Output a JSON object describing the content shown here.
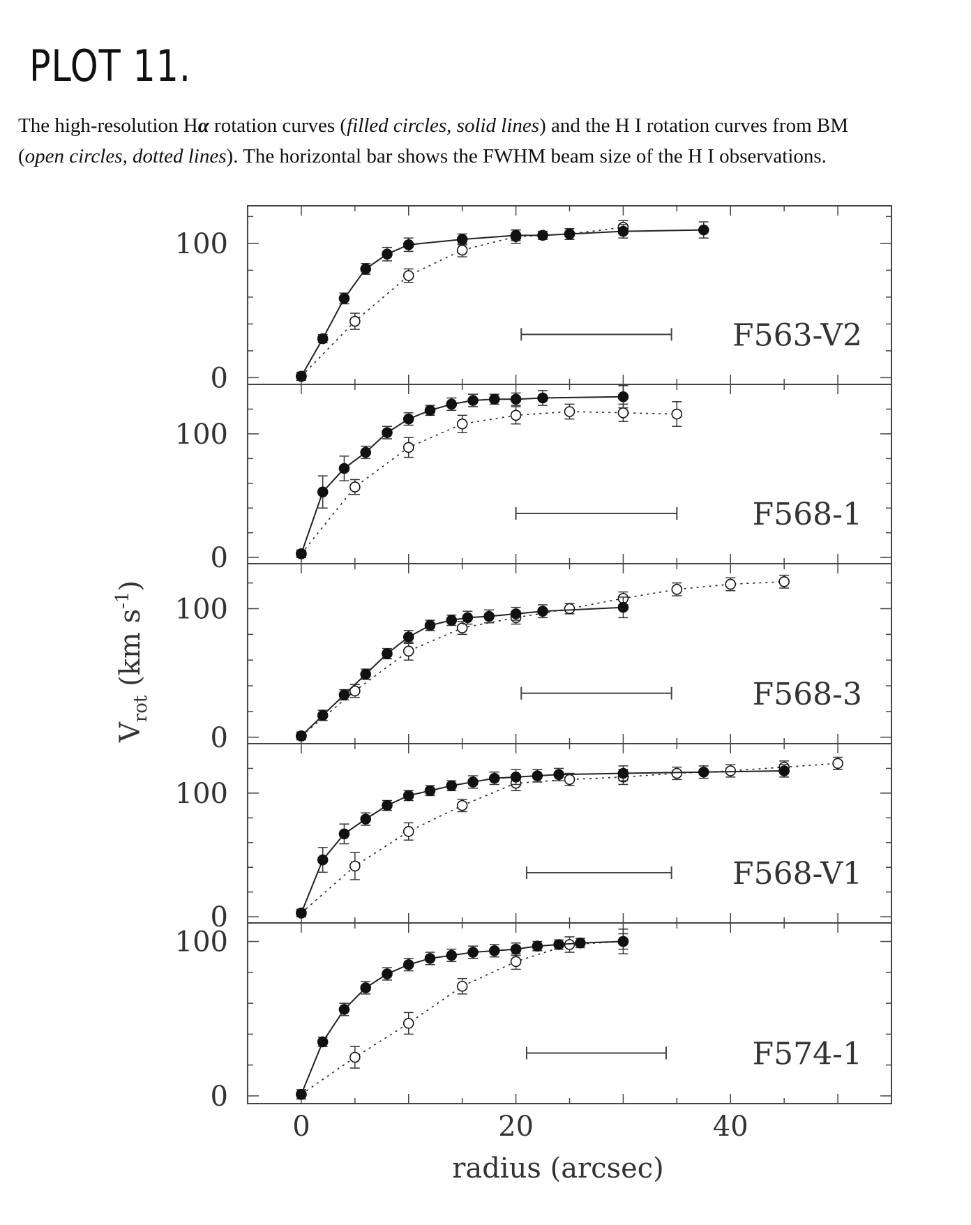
{
  "page": {
    "heading": "PLOT 11.",
    "caption_line1_a": "The high-resolution H",
    "caption_alpha": "α",
    "caption_line1_b": " rotation curves (",
    "caption_line1_i": "filled circles, solid lines",
    "caption_line1_c": ") and the H I rotation curves from BM",
    "caption_line2_a": "(",
    "caption_line2_i": "open circles, dotted lines",
    "caption_line2_b": "). The horizontal bar shows the FWHM beam size of the H I observations."
  },
  "chart_data": {
    "type": "scatter",
    "xlabel": "radius (arcsec)",
    "ylabel": "V_rot (km s^-1)",
    "ylabel_main": "V",
    "ylabel_sub": "rot",
    "ylabel_tail": "(km s",
    "ylabel_sup": "-1",
    "ylabel_end": ")",
    "xlim": [
      -5,
      55
    ],
    "x_ticks": [
      0,
      20,
      40
    ],
    "x_tick_labels": [
      "0",
      "20",
      "40"
    ],
    "y_ticks": [
      0,
      100
    ],
    "y_tick_labels": [
      "0",
      "100"
    ],
    "legend": "none",
    "panels": [
      {
        "label": "F563-V2",
        "ylim": [
          -5,
          128
        ],
        "beam": [
          20.5,
          34.5
        ],
        "series": [
          {
            "style": "filled",
            "connector": "solid",
            "points": [
              [
                0,
                1,
                3
              ],
              [
                2,
                29,
                3
              ],
              [
                4,
                59,
                4
              ],
              [
                6,
                81,
                4
              ],
              [
                8,
                92,
                5
              ],
              [
                10,
                99,
                5
              ],
              [
                15,
                103,
                4
              ],
              [
                20,
                106,
                4
              ],
              [
                22.5,
                106,
                3
              ],
              [
                25,
                107,
                4
              ],
              [
                30,
                109,
                5
              ],
              [
                37.5,
                110,
                6
              ]
            ]
          },
          {
            "style": "open",
            "connector": "dotted",
            "points": [
              [
                0,
                1,
                3
              ],
              [
                5,
                42,
                6
              ],
              [
                10,
                76,
                5
              ],
              [
                15,
                95,
                5
              ],
              [
                20,
                105,
                5
              ],
              [
                25,
                107,
                4
              ],
              [
                30,
                112,
                5
              ]
            ]
          }
        ]
      },
      {
        "label": "F568-1",
        "ylim": [
          -5,
          140
        ],
        "beam": [
          20,
          35
        ],
        "series": [
          {
            "style": "filled",
            "connector": "solid",
            "points": [
              [
                0,
                3,
                3
              ],
              [
                2,
                53,
                13
              ],
              [
                4,
                72,
                10
              ],
              [
                6,
                85,
                5
              ],
              [
                8,
                101,
                5
              ],
              [
                10,
                112,
                5
              ],
              [
                12,
                119,
                4
              ],
              [
                14,
                124,
                5
              ],
              [
                16,
                127,
                5
              ],
              [
                18,
                128,
                4
              ],
              [
                20,
                128,
                5
              ],
              [
                22.5,
                129,
                6
              ],
              [
                30,
                130,
                9
              ]
            ]
          },
          {
            "style": "open",
            "connector": "dotted",
            "points": [
              [
                0,
                3,
                3
              ],
              [
                5,
                57,
                6
              ],
              [
                10,
                89,
                8
              ],
              [
                15,
                108,
                7
              ],
              [
                20,
                115,
                7
              ],
              [
                25,
                118,
                6
              ],
              [
                30,
                117,
                7
              ],
              [
                35,
                116,
                10
              ]
            ]
          }
        ]
      },
      {
        "label": "F568-3",
        "ylim": [
          -5,
          135
        ],
        "beam": [
          20.5,
          34.5
        ],
        "series": [
          {
            "style": "filled",
            "connector": "solid",
            "points": [
              [
                0,
                1,
                3
              ],
              [
                2,
                17,
                4
              ],
              [
                4,
                33,
                4
              ],
              [
                6,
                49,
                4
              ],
              [
                8,
                65,
                4
              ],
              [
                10,
                78,
                5
              ],
              [
                12,
                87,
                4
              ],
              [
                14,
                91,
                4
              ],
              [
                15.5,
                93,
                5
              ],
              [
                17.5,
                94,
                5
              ],
              [
                20,
                96,
                5
              ],
              [
                22.5,
                98,
                5
              ],
              [
                30,
                101,
                8
              ]
            ]
          },
          {
            "style": "open",
            "connector": "dotted",
            "points": [
              [
                0,
                1,
                3
              ],
              [
                5,
                36,
                5
              ],
              [
                10,
                67,
                7
              ],
              [
                15,
                85,
                5
              ],
              [
                20,
                93,
                5
              ],
              [
                25,
                100,
                4
              ],
              [
                30,
                108,
                5
              ],
              [
                35,
                115,
                5
              ],
              [
                40,
                119,
                5
              ],
              [
                45,
                121,
                5
              ]
            ]
          }
        ]
      },
      {
        "label": "F568-V1",
        "ylim": [
          -5,
          140
        ],
        "beam": [
          21,
          34.5
        ],
        "series": [
          {
            "style": "filled",
            "connector": "solid",
            "points": [
              [
                0,
                3,
                3
              ],
              [
                2,
                46,
                10
              ],
              [
                4,
                67,
                8
              ],
              [
                6,
                79,
                5
              ],
              [
                8,
                90,
                4
              ],
              [
                10,
                98,
                4
              ],
              [
                12,
                102,
                4
              ],
              [
                14,
                106,
                4
              ],
              [
                16,
                109,
                5
              ],
              [
                18,
                112,
                5
              ],
              [
                20,
                113,
                6
              ],
              [
                22,
                114,
                5
              ],
              [
                24,
                115,
                5
              ],
              [
                30,
                116,
                6
              ],
              [
                37.5,
                117,
                5
              ],
              [
                45,
                118,
                5
              ]
            ]
          },
          {
            "style": "open",
            "connector": "dotted",
            "points": [
              [
                0,
                3,
                3
              ],
              [
                5,
                41,
                11
              ],
              [
                10,
                69,
                7
              ],
              [
                15,
                90,
                5
              ],
              [
                20,
                108,
                6
              ],
              [
                25,
                111,
                5
              ],
              [
                30,
                113,
                6
              ],
              [
                35,
                116,
                5
              ],
              [
                40,
                118,
                5
              ],
              [
                45,
                121,
                5
              ],
              [
                50,
                124,
                5
              ]
            ]
          }
        ]
      },
      {
        "label": "F574-1",
        "ylim": [
          -5,
          112
        ],
        "beam": [
          21,
          34
        ],
        "series": [
          {
            "style": "filled",
            "connector": "solid",
            "points": [
              [
                0,
                1,
                3
              ],
              [
                2,
                35,
                3
              ],
              [
                4,
                56,
                4
              ],
              [
                6,
                70,
                4
              ],
              [
                8,
                79,
                4
              ],
              [
                10,
                85,
                4
              ],
              [
                12,
                89,
                4
              ],
              [
                14,
                91,
                4
              ],
              [
                16,
                93,
                4
              ],
              [
                18,
                94,
                4
              ],
              [
                20,
                95,
                4
              ],
              [
                22,
                97,
                3
              ],
              [
                24,
                98,
                3
              ],
              [
                26,
                99,
                3
              ],
              [
                30,
                100,
                8
              ]
            ]
          },
          {
            "style": "open",
            "connector": "dotted",
            "points": [
              [
                0,
                1,
                3
              ],
              [
                5,
                25,
                7
              ],
              [
                10,
                47,
                7
              ],
              [
                15,
                71,
                5
              ],
              [
                20,
                87,
                5
              ],
              [
                25,
                98,
                5
              ],
              [
                30,
                100,
                5
              ]
            ]
          }
        ]
      }
    ]
  }
}
